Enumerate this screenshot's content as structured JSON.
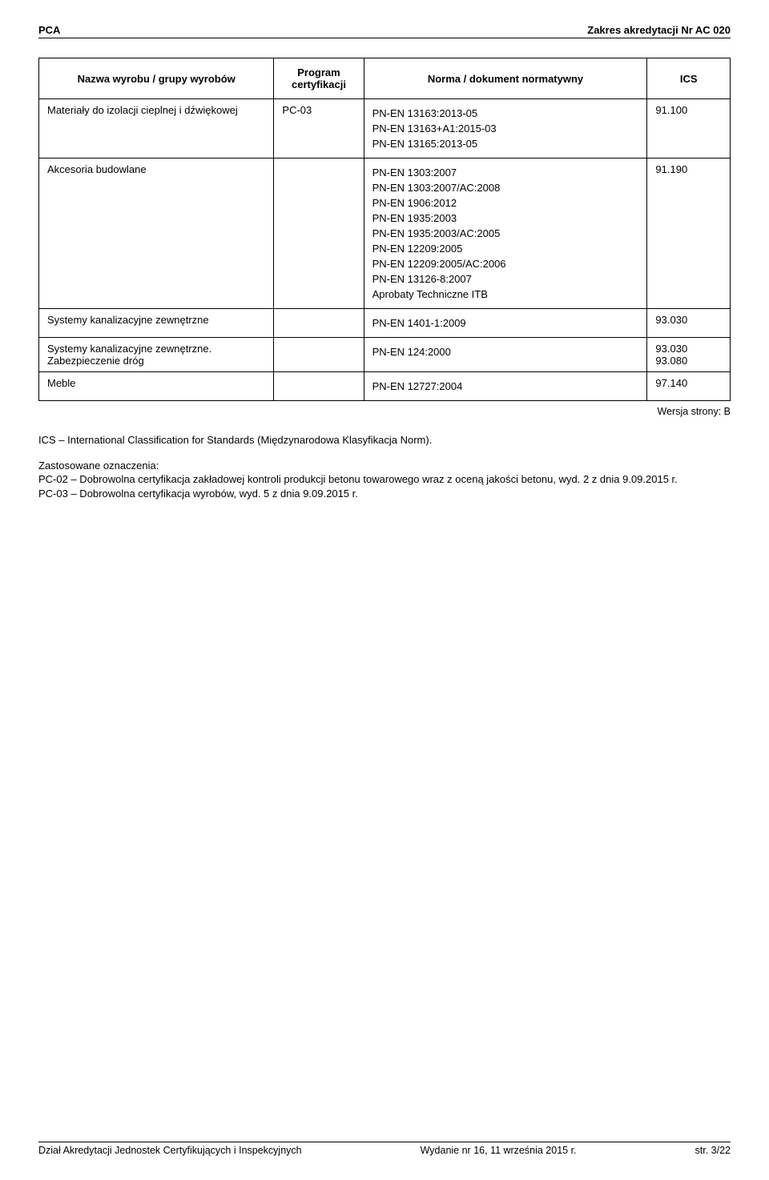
{
  "header": {
    "left": "PCA",
    "right": "Zakres akredytacji Nr AC 020"
  },
  "table": {
    "headers": {
      "name": "Nazwa wyrobu / grupy wyrobów",
      "program": "Program certyfikacji",
      "norm": "Norma / dokument normatywny",
      "ics": "ICS"
    },
    "rows": [
      {
        "name": "Materiały do izolacji cieplnej i dźwiękowej",
        "program": "PC-03",
        "norms": [
          "PN-EN 13163:2013-05",
          "PN-EN 13163+A1:2015-03",
          "PN-EN 13165:2013-05"
        ],
        "ics": "91.100"
      },
      {
        "name": "Akcesoria budowlane",
        "program": "",
        "norms": [
          "PN-EN 1303:2007",
          "PN-EN 1303:2007/AC:2008",
          "PN-EN 1906:2012",
          "PN-EN 1935:2003",
          "PN-EN 1935:2003/AC:2005",
          "PN-EN 12209:2005",
          "PN-EN 12209:2005/AC:2006",
          "PN-EN 13126-8:2007",
          "Aprobaty Techniczne ITB"
        ],
        "ics": "91.190"
      },
      {
        "name": "Systemy kanalizacyjne zewnętrzne",
        "program": "",
        "norms": [
          "PN-EN 1401-1:2009"
        ],
        "ics": "93.030"
      },
      {
        "name": "Systemy kanalizacyjne zewnętrzne. Zabezpieczenie dróg",
        "program": "",
        "norms": [
          "PN-EN 124:2000"
        ],
        "ics": "93.030 93.080"
      },
      {
        "name": "Meble",
        "program": "",
        "norms": [
          "PN-EN 12727:2004"
        ],
        "ics": "97.140"
      }
    ]
  },
  "version": "Wersja strony: B",
  "notes": {
    "ics_def": "ICS – International Classification for Standards (Międzynarodowa Klasyfikacja Norm).",
    "legend_title": "Zastosowane oznaczenia:",
    "pc02": "PC-02 – Dobrowolna certyfikacja zakładowej kontroli produkcji betonu towarowego wraz z oceną jakości betonu, wyd. 2 z dnia 9.09.2015 r.",
    "pc03": "PC-03 – Dobrowolna certyfikacja wyrobów, wyd. 5 z dnia 9.09.2015 r."
  },
  "footer": {
    "left": "Dział Akredytacji Jednostek Certyfikujących i Inspekcyjnych",
    "center": "Wydanie nr 16, 11 września 2015 r.",
    "right": "str. 3/22"
  }
}
